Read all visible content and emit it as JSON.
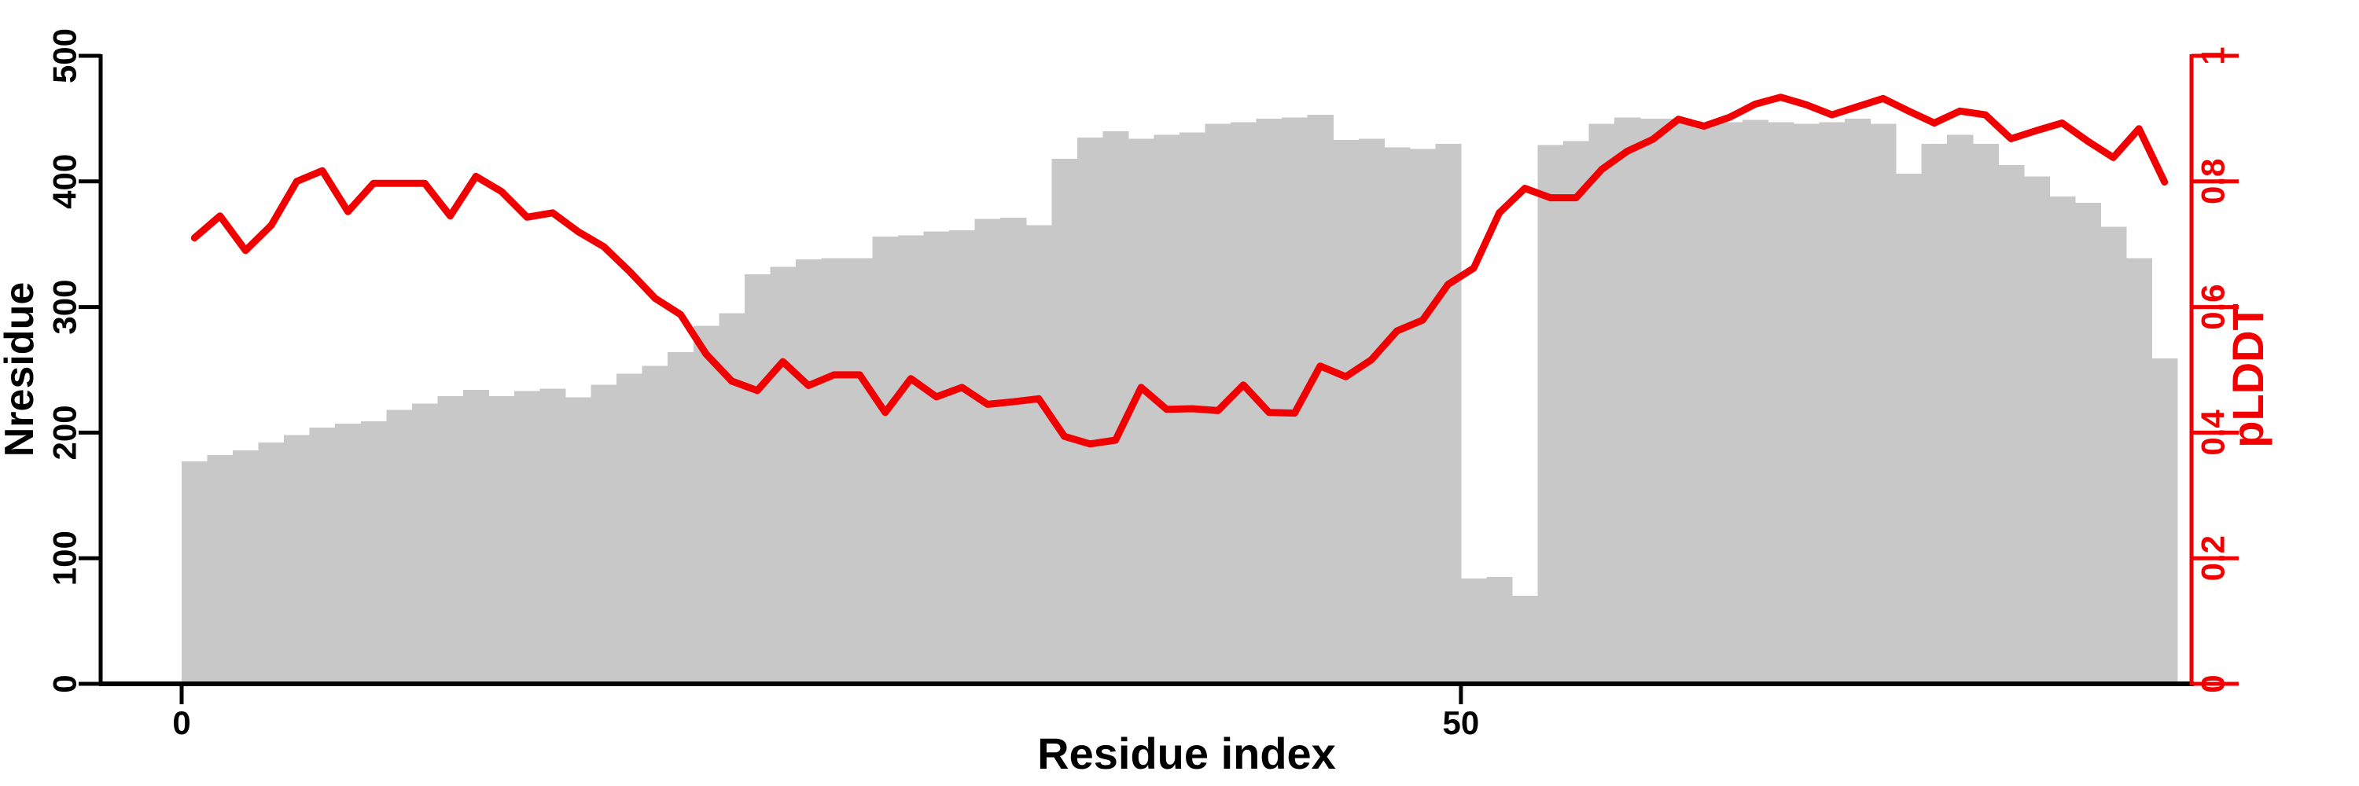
{
  "figure": {
    "background_color": "#ffffff",
    "bar_color": "#c8c8c8",
    "line_color": "#f00000",
    "left_axis_color": "#000000",
    "right_axis_color": "#f00000"
  },
  "chart_data": {
    "type": "bar",
    "title": "",
    "xlabel": "Residue index",
    "ylabel_left": "Nresidue",
    "ylabel_right": "pLDDT",
    "grid": false,
    "legend_position": "none",
    "x_axis": {
      "label": "Residue index",
      "ticks": [
        0,
        50
      ],
      "tick_labels": [
        "0",
        "50"
      ],
      "range_residues": [
        0,
        78
      ]
    },
    "left_axis": {
      "label": "Nresidue",
      "ticks": [
        0,
        100,
        200,
        300,
        400,
        500
      ],
      "tick_labels": [
        "0",
        "100",
        "200",
        "300",
        "400",
        "500"
      ],
      "range": [
        0,
        500
      ]
    },
    "right_axis": {
      "label": "pLDDT",
      "ticks": [
        0,
        0.2,
        0.4,
        0.6,
        0.8,
        1
      ],
      "tick_labels": [
        "0",
        "0.2",
        "0.4",
        "0.6",
        "0.8",
        "1"
      ],
      "range": [
        0,
        1
      ]
    },
    "x": [
      0,
      1,
      2,
      3,
      4,
      5,
      6,
      7,
      8,
      9,
      10,
      11,
      12,
      13,
      14,
      15,
      16,
      17,
      18,
      19,
      20,
      21,
      22,
      23,
      24,
      25,
      26,
      27,
      28,
      29,
      30,
      31,
      32,
      33,
      34,
      35,
      36,
      37,
      38,
      39,
      40,
      41,
      42,
      43,
      44,
      45,
      46,
      47,
      48,
      49,
      50,
      51,
      52,
      53,
      54,
      55,
      56,
      57,
      58,
      59,
      60,
      61,
      62,
      63,
      64,
      65,
      66,
      67,
      68,
      69,
      70,
      71,
      72,
      73,
      74,
      75,
      76,
      77
    ],
    "series": [
      {
        "name": "Nresidue",
        "type": "bar",
        "axis": "left",
        "color": "#c8c8c8",
        "values": [
          177,
          182,
          186,
          192,
          198,
          204,
          207,
          209,
          218,
          223,
          229,
          234,
          229,
          233,
          235,
          228,
          238,
          247,
          253,
          264,
          285,
          295,
          326,
          332,
          338,
          339,
          339,
          356,
          357,
          360,
          361,
          370,
          371,
          365,
          418,
          435,
          440,
          434,
          437,
          439,
          446,
          447,
          450,
          451,
          453,
          433,
          434,
          427,
          426,
          430,
          84,
          85,
          70,
          429,
          432,
          446,
          451,
          450,
          450,
          446,
          447,
          449,
          447,
          446,
          447,
          450,
          446,
          406,
          430,
          437,
          430,
          413,
          404,
          388,
          383,
          364,
          339,
          259
        ]
      },
      {
        "name": "pLDDT",
        "type": "line",
        "axis": "right",
        "color": "#f00000",
        "values": [
          0.71,
          0.745,
          0.69,
          0.73,
          0.8,
          0.817,
          0.752,
          0.797,
          0.797,
          0.797,
          0.745,
          0.808,
          0.784,
          0.743,
          0.75,
          0.72,
          0.696,
          0.657,
          0.614,
          0.588,
          0.525,
          0.482,
          0.467,
          0.513,
          0.475,
          0.492,
          0.492,
          0.432,
          0.486,
          0.457,
          0.472,
          0.445,
          0.449,
          0.454,
          0.394,
          0.382,
          0.388,
          0.472,
          0.437,
          0.438,
          0.435,
          0.476,
          0.432,
          0.431,
          0.506,
          0.489,
          0.516,
          0.562,
          0.579,
          0.636,
          0.662,
          0.75,
          0.789,
          0.774,
          0.774,
          0.819,
          0.848,
          0.867,
          0.899,
          0.888,
          0.902,
          0.923,
          0.934,
          0.922,
          0.906,
          0.919,
          0.932,
          0.912,
          0.893,
          0.912,
          0.906,
          0.868,
          0.881,
          0.893,
          0.864,
          0.838,
          0.884,
          0.799
        ]
      }
    ]
  }
}
